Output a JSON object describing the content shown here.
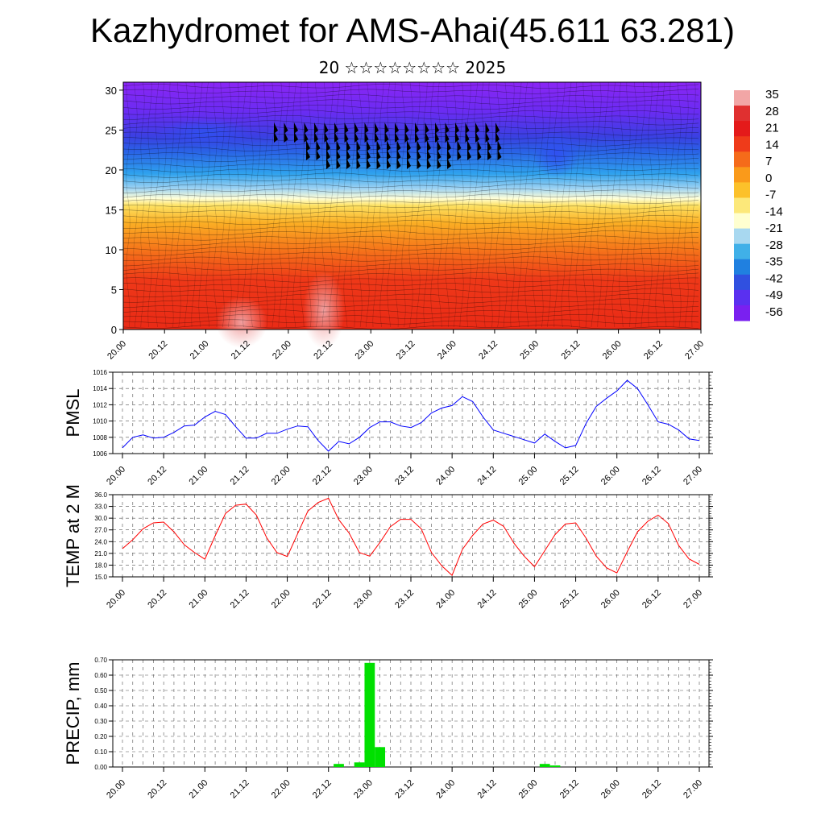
{
  "title": "Kazhydromet for AMS-Ahai(45.611 63.281)",
  "subtitle": "20 ☆☆☆☆☆☆☆☆ 2025",
  "time_labels": [
    "20.00",
    "20.12",
    "21.00",
    "21.12",
    "22.00",
    "22.12",
    "23.00",
    "23.12",
    "24.00",
    "24.12",
    "25.00",
    "25.12",
    "26.00",
    "26.12",
    "27.00"
  ],
  "colors": {
    "pmsl_line": "#0000ff",
    "temp_line": "#ff0000",
    "precip_bar": "#00e000",
    "grid": "#555555"
  },
  "chart_data": [
    {
      "type": "heatmap",
      "name": "vertical-section",
      "yticks": [
        0,
        5,
        10,
        15,
        20,
        25,
        30
      ],
      "ylim": [
        0,
        31
      ],
      "colorbar": {
        "labels": [
          "35",
          "28",
          "21",
          "14",
          "7",
          "0",
          "-7",
          "-14",
          "-21",
          "-28",
          "-35",
          "-42",
          "-49",
          "-56"
        ],
        "colors": [
          "#f2a6a6",
          "#e03030",
          "#e41a1a",
          "#ef3b1a",
          "#f56b1a",
          "#fa9a1a",
          "#fcc12a",
          "#fce87a",
          "#ffffd0",
          "#a8d8f0",
          "#40b0e8",
          "#2080e0",
          "#3050e0",
          "#5a30f0",
          "#7a20f0"
        ]
      }
    },
    {
      "type": "line",
      "name": "pmsl",
      "ylabel": "PMSL",
      "ylim": [
        1006,
        1016
      ],
      "yticks": [
        "1006",
        "1008",
        "1010",
        "1012",
        "1014",
        "1016"
      ],
      "values": [
        1006.7,
        1008.0,
        1008.3,
        1007.9,
        1008.0,
        1008.6,
        1009.4,
        1009.5,
        1010.5,
        1011.2,
        1010.8,
        1009.3,
        1007.9,
        1007.9,
        1008.5,
        1008.5,
        1009.0,
        1009.4,
        1009.3,
        1007.6,
        1006.3,
        1007.5,
        1007.2,
        1008.0,
        1009.2,
        1009.9,
        1009.9,
        1009.4,
        1009.2,
        1009.8,
        1011.0,
        1011.6,
        1011.9,
        1013.0,
        1012.4,
        1010.5,
        1008.9,
        1008.5,
        1008.1,
        1007.7,
        1007.3,
        1008.4,
        1007.5,
        1006.7,
        1007.0,
        1009.7,
        1011.8,
        1012.8,
        1013.7,
        1015.0,
        1014.0,
        1012.0,
        1009.9,
        1009.6,
        1008.9,
        1007.8,
        1007.6
      ]
    },
    {
      "type": "line",
      "name": "temp",
      "ylabel": "TEMP at 2 M",
      "ylim": [
        15,
        36
      ],
      "yticks": [
        "15.0",
        "18.0",
        "21.0",
        "24.0",
        "27.0",
        "30.0",
        "33.0",
        "36.0"
      ],
      "values": [
        22.2,
        24.5,
        27.3,
        28.8,
        29.0,
        26.5,
        23.2,
        21.2,
        19.5,
        25.5,
        31.2,
        33.3,
        33.6,
        30.8,
        25.0,
        21.2,
        20.2,
        26.0,
        31.8,
        34.0,
        35.1,
        29.6,
        26.2,
        21.2,
        20.3,
        23.8,
        27.8,
        29.7,
        29.7,
        27.3,
        21.2,
        17.8,
        15.4,
        22.0,
        25.6,
        28.5,
        29.5,
        27.9,
        23.6,
        20.3,
        17.6,
        21.7,
        25.8,
        28.5,
        28.8,
        24.9,
        20.3,
        17.3,
        16.0,
        21.4,
        26.5,
        29.2,
        30.8,
        28.6,
        23.0,
        19.6,
        18.2
      ]
    },
    {
      "type": "bar",
      "name": "precip",
      "ylabel": "PRECIP, mm",
      "ylim": [
        0,
        0.7
      ],
      "yticks": [
        "0.00",
        "0.10",
        "0.20",
        "0.30",
        "0.40",
        "0.50",
        "0.60",
        "0.70"
      ],
      "bars": [
        {
          "t": 21,
          "value": 0.02
        },
        {
          "t": 23,
          "value": 0.03
        },
        {
          "t": 24,
          "value": 0.68
        },
        {
          "t": 25,
          "value": 0.13
        },
        {
          "t": 41,
          "value": 0.02
        },
        {
          "t": 42,
          "value": 0.01
        }
      ]
    }
  ]
}
